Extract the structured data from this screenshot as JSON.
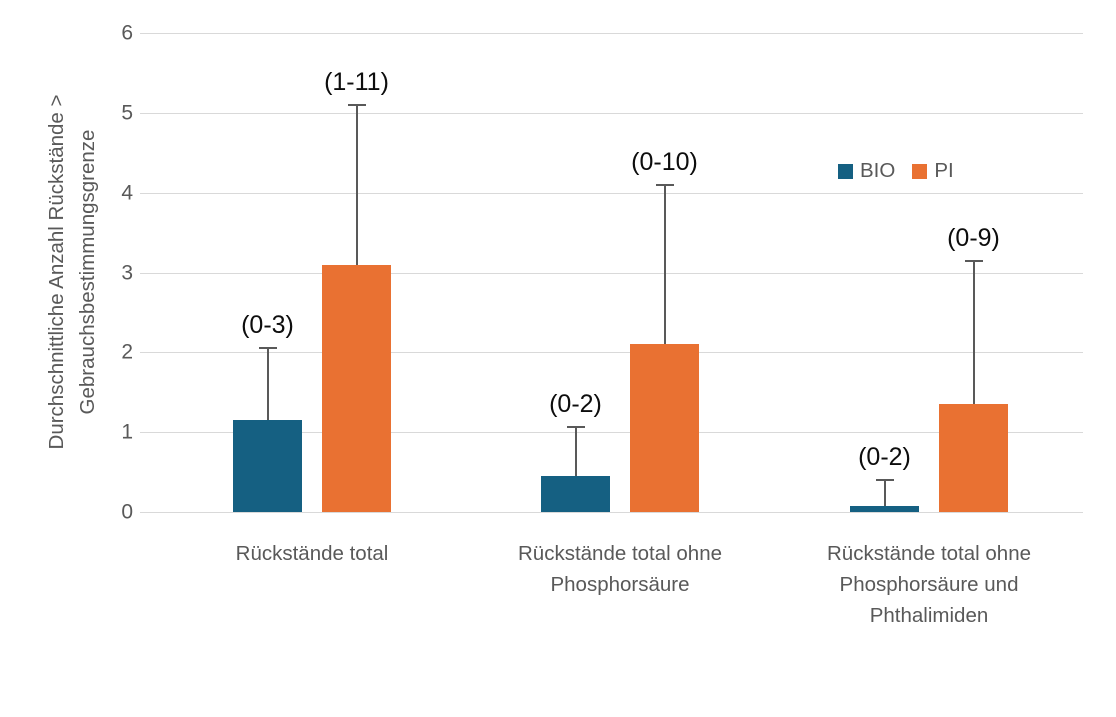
{
  "chart_data": {
    "type": "bar",
    "title": "",
    "ylabel": "Durchschnittliche Anzahl Rückstände  > Gebrauchsbestimmungsgrenze",
    "ylabel_line1": "Durchschnittliche Anzahl Rückstände  >",
    "ylabel_line2": "Gebrauchsbestimmungsgrenze",
    "xlabel": "",
    "ylim": [
      0,
      6
    ],
    "ytick_interval": 1,
    "ytick_labels": [
      "0",
      "1",
      "2",
      "3",
      "4",
      "5",
      "6"
    ],
    "grid": true,
    "legend_position": "inside-top-right",
    "categories": [
      "Rückstände total",
      "Rückstände total ohne Phosphorsäure",
      "Rückstände total ohne Phosphorsäure und Phthalimiden"
    ],
    "series": [
      {
        "name": "BIO",
        "color": "#156082",
        "values": [
          1.15,
          0.45,
          0.08
        ],
        "error_bar_top": [
          2.05,
          1.07,
          0.4
        ],
        "range_annotations": [
          "(0-3)",
          "(0-2)",
          "(0-2)"
        ]
      },
      {
        "name": "PI",
        "color": "#E97132",
        "values": [
          3.1,
          2.1,
          1.35
        ],
        "error_bar_top": [
          5.1,
          4.1,
          3.15
        ],
        "range_annotations": [
          "(1-11)",
          "(0-10)",
          "(0-9)"
        ]
      }
    ]
  },
  "colors": {
    "bio_bar": "#156082",
    "pi_bar": "#E97132",
    "gridline": "#D9D9D9",
    "axis_text": "#595959",
    "error_bar": "#595959",
    "annotation_text": "#0d0d0d",
    "background": "#ffffff"
  }
}
